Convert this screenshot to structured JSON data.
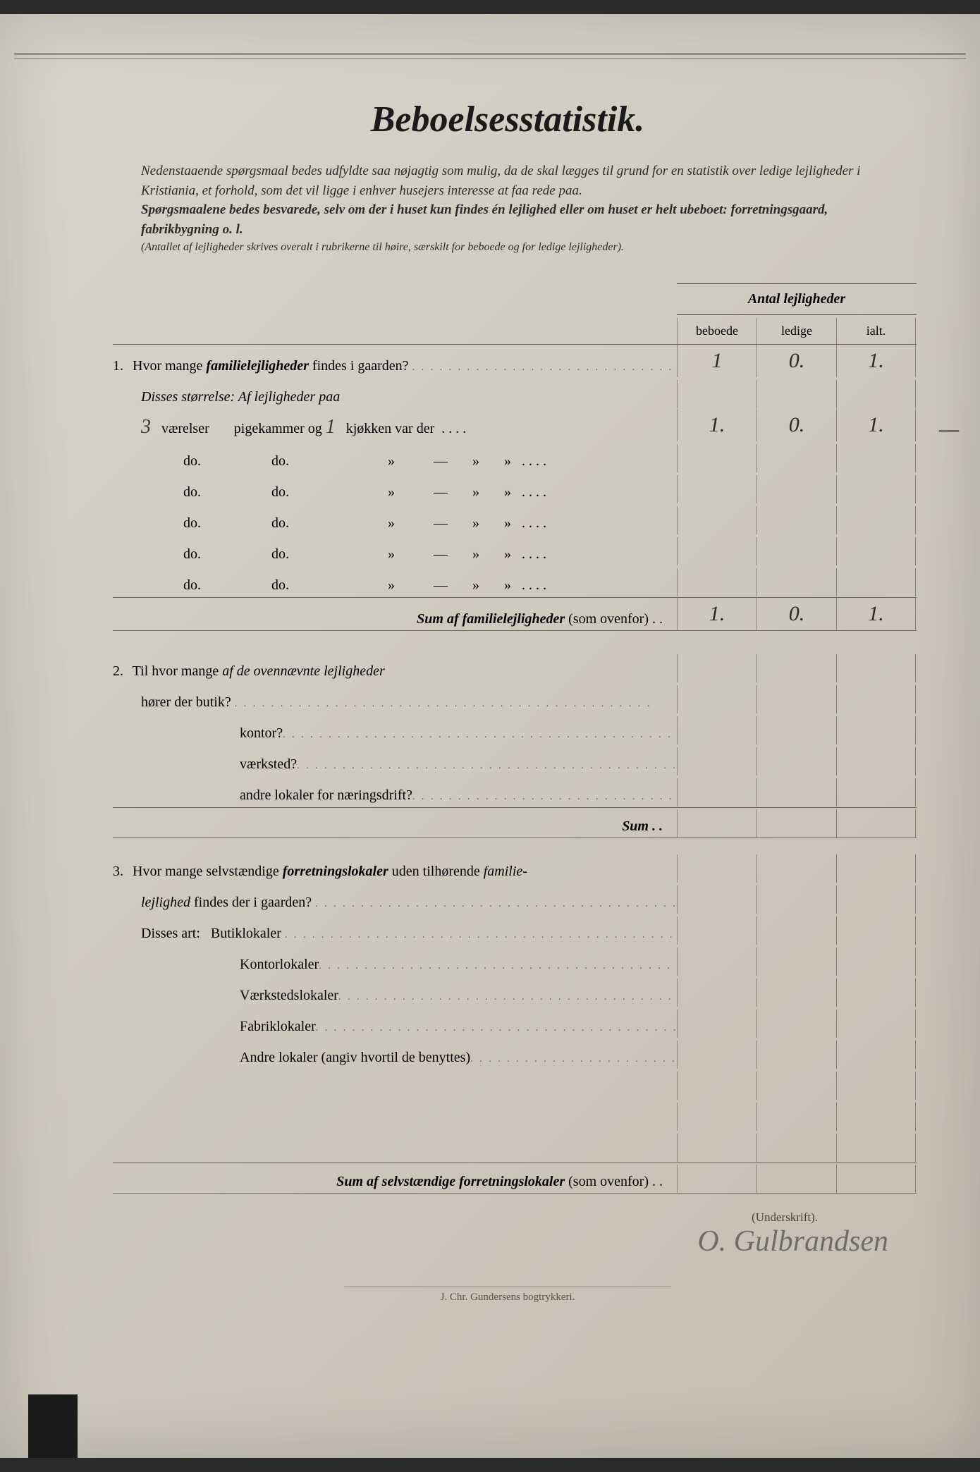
{
  "title": "Beboelsesstatistik.",
  "intro": {
    "p1": "Nedenstaaende spørgsmaal bedes udfyldte saa nøjagtig som mulig, da de skal lægges til grund for en statistik over ledige lejligheder i Kristiania, et forhold, som det vil ligge i enhver husejers interesse at faa rede paa.",
    "p2": "Spørgsmaalene bedes besvarede, selv om der i huset kun findes én lejlighed eller om huset er helt ubeboet: forretningsgaard, fabrikbygning o. l.",
    "p3": "(Antallet af lejligheder skrives overalt i rubrikerne til høire, særskilt for beboede og for ledige lejligheder)."
  },
  "table_header": "Antal lejligheder",
  "columns": {
    "c1": "beboede",
    "c2": "ledige",
    "c3": "ialt."
  },
  "q1": {
    "num": "1.",
    "text": "Hvor mange ",
    "ital": "familielejligheder",
    "text2": " findes i gaarden?",
    "vals": {
      "beboede": "1",
      "ledige": "0.",
      "ialt": "1."
    }
  },
  "disses": "Disses størrelse:   Af lejligheder paa",
  "room_row": {
    "hw1": "3",
    "t1": " værelser",
    "t2": "pigekammer og ",
    "hw2": "1",
    "t3": " kjøkken var der",
    "vals": {
      "beboede": "1.",
      "ledige": "0.",
      "ialt": "1."
    }
  },
  "do_rows": [
    {
      "t1": "do.",
      "t2": "do.",
      "t3": "—"
    },
    {
      "t1": "do.",
      "t2": "do.",
      "t3": "—"
    },
    {
      "t1": "do.",
      "t2": "do.",
      "t3": "—"
    },
    {
      "t1": "do.",
      "t2": "do.",
      "t3": "—"
    },
    {
      "t1": "do.",
      "t2": "do.",
      "t3": "—"
    }
  ],
  "sum1": {
    "label": "Sum af familielejligheder",
    "suffix": " (som ovenfor) . .",
    "vals": {
      "beboede": "1.",
      "ledige": "0.",
      "ialt": "1."
    }
  },
  "q2": {
    "num": "2.",
    "text": "Til hvor mange ",
    "ital": "af de ovennævnte lejligheder",
    "sub": "hører der butik?",
    "items": [
      "kontor?",
      "værksted?",
      "andre lokaler for næringsdrift?"
    ],
    "sum": "Sum . ."
  },
  "q3": {
    "num": "3.",
    "text": "Hvor mange selvstændige ",
    "ital": "forretningslokaler",
    "text2": " uden tilhørende ",
    "ital2": "familie-",
    "line2": "lejlighed",
    "line2b": " findes der i gaarden?",
    "disses": "Disses art:",
    "items": [
      "Butiklokaler",
      "Kontorlokaler",
      "Værkstedslokaler",
      "Fabriklokaler",
      "Andre lokaler (angiv hvortil de benyttes)"
    ]
  },
  "sum3": {
    "label": "Sum af selvstændige forretningslokaler",
    "suffix": " (som ovenfor) . ."
  },
  "signature_label": "(Underskrift).",
  "signature": "O. Gulbrandsen",
  "printer": "J. Chr. Gundersens bogtrykkeri."
}
